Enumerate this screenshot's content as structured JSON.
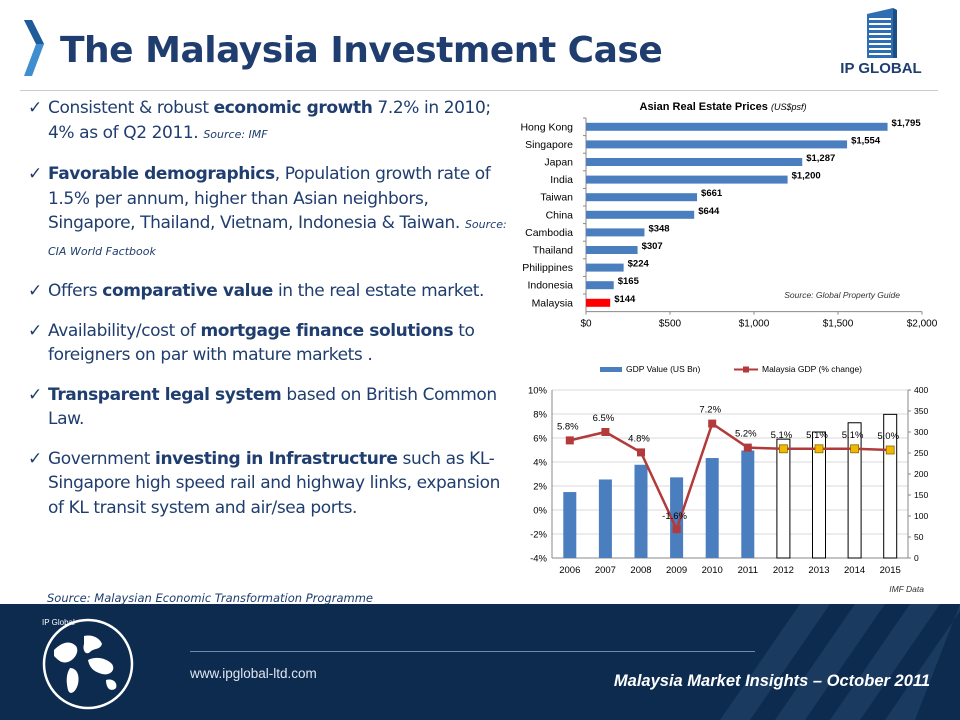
{
  "header": {
    "title": "The Malaysia Investment Case",
    "logo_text": "IP GLOBAL"
  },
  "bullets": [
    {
      "pre": "Consistent & robust ",
      "bold": "economic growth",
      "post": " 7.2% in 2010; 4% as of Q2 2011. ",
      "source": "Source: IMF"
    },
    {
      "pre": "",
      "bold": "Favorable demographics",
      "post": ", Population growth rate of 1.5% per annum, higher than Asian neighbors, Singapore, Thailand, Vietnam, Indonesia & Taiwan.  ",
      "source": "Source: CIA World Factbook"
    },
    {
      "pre": "Offers ",
      "bold": "comparative value",
      "post": " in the real estate market.",
      "source": ""
    },
    {
      "pre": "Availability/cost of ",
      "bold": "mortgage finance solutions",
      "post": " to foreigners on par with mature markets .",
      "source": ""
    },
    {
      "pre": "",
      "bold": "Transparent legal system",
      "post": " based on British Common Law.",
      "source": ""
    },
    {
      "pre": "Government ",
      "bold": "investing in Infrastructure",
      "post": " such as KL-Singapore high speed rail and highway links, expansion of KL transit system and air/sea ports.",
      "source": ""
    }
  ],
  "bullets_last_source": "Source: Malaysian Economic Transformation Programme",
  "chart_data": [
    {
      "type": "bar",
      "orientation": "horizontal",
      "title": "Asian Real Estate Prices",
      "title_unit": "(US$psf)",
      "categories": [
        "Hong Kong",
        "Singapore",
        "Japan",
        "India",
        "Taiwan",
        "China",
        "Cambodia",
        "Thailand",
        "Philippines",
        "Indonesia",
        "Malaysia"
      ],
      "values": [
        1795,
        1554,
        1287,
        1200,
        661,
        644,
        348,
        307,
        224,
        165,
        144
      ],
      "value_labels": [
        "$1,795",
        "$1,554",
        "$1,287",
        "$1,200",
        "$661",
        "$644",
        "$348",
        "$307",
        "$224",
        "$165",
        "$144"
      ],
      "xlim": [
        0,
        2000
      ],
      "xticks": [
        0,
        500,
        1000,
        1500,
        2000
      ],
      "xtick_labels": [
        "$0",
        "$500",
        "$1,000",
        "$1,500",
        "$2,000"
      ],
      "bar_color": "#4a7ebf",
      "highlight": {
        "category": "Malaysia",
        "color": "#ff0000"
      },
      "note": "Source: Global Property Guide",
      "grid": false
    },
    {
      "type": "bar+line",
      "legend": [
        "GDP Value (US Bn)",
        "Malaysia GDP (% change)"
      ],
      "legend_placement": "top",
      "categories": [
        "2006",
        "2007",
        "2008",
        "2009",
        "2010",
        "2011",
        "2012",
        "2013",
        "2014",
        "2015"
      ],
      "series": [
        {
          "name": "GDP Value (US Bn)",
          "type": "bar",
          "axis": "right",
          "values": [
            157,
            187,
            222,
            192,
            238,
            256,
            283,
            300,
            322,
            342
          ],
          "projected_from": "2012",
          "color": "#4a7ebf"
        },
        {
          "name": "Malaysia GDP (% change)",
          "type": "line",
          "axis": "left",
          "values": [
            5.8,
            6.5,
            4.8,
            -1.6,
            7.2,
            5.2,
            5.1,
            5.1,
            5.1,
            5.0
          ],
          "labels": [
            "5.8%",
            "6.5%",
            "4.8%",
            "-1.6%",
            "7.2%",
            "5.2%",
            "5.1%",
            "5.1%",
            "5.1%",
            "5.0%"
          ],
          "color": "#b23a3a",
          "projected_marker_color": "#f0b800"
        }
      ],
      "ylim_left": [
        -4,
        10
      ],
      "yticks_left": [
        -4,
        -2,
        0,
        2,
        4,
        6,
        8,
        10
      ],
      "ytick_labels_left": [
        "-4%",
        "-2%",
        "0%",
        "2%",
        "4%",
        "6%",
        "8%",
        "10%"
      ],
      "ylim_right": [
        0,
        400
      ],
      "yticks_right": [
        0,
        50,
        100,
        150,
        200,
        250,
        300,
        350,
        400
      ],
      "note": "IMF Data",
      "grid": true
    }
  ],
  "footer": {
    "brand": "IP Global",
    "url": "www.ipglobal-ltd.com",
    "insight": "Malaysia Market Insights – October 2011"
  }
}
